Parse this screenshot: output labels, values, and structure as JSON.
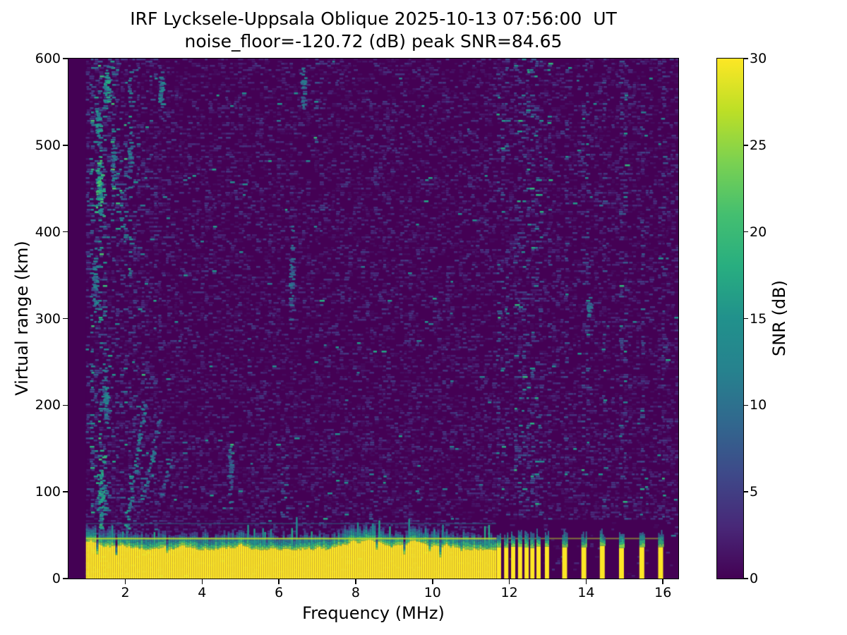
{
  "chart_data": {
    "type": "heatmap",
    "title": "IRF Lycksele-Uppsala Oblique 2025-10-13 07:56:00  UT",
    "subtitle": "noise_floor=-120.72 (dB) peak SNR=84.65",
    "station_pair": "Lycksele-Uppsala",
    "sounding_mode": "Oblique",
    "timestamp_ut": "2025-10-13 07:56:00",
    "noise_floor_db": -120.72,
    "peak_snr_db": 84.65,
    "xlabel": "Frequency (MHz)",
    "ylabel": "Virtual range (km)",
    "colorbar_label": "SNR (dB)",
    "xlim": [
      0.52,
      16.4
    ],
    "ylim": [
      0,
      600
    ],
    "snr_range_db": [
      0,
      30
    ],
    "xticks": [
      2,
      4,
      6,
      8,
      10,
      12,
      14,
      16
    ],
    "yticks": [
      0,
      100,
      200,
      300,
      400,
      500,
      600
    ],
    "colorbar_ticks": [
      0,
      5,
      10,
      15,
      20,
      25,
      30
    ],
    "colormap": "viridis",
    "colormap_stops": [
      "#440154",
      "#482878",
      "#3e4989",
      "#31688e",
      "#26828e",
      "#21918c",
      "#28ae80",
      "#44bf70",
      "#7ad151",
      "#bddf26",
      "#fde725"
    ],
    "grid": false,
    "legend": "colorbar-right",
    "data_freq_start_mhz": 0.97,
    "ground_band": {
      "freq_start_mhz": 0.97,
      "solid_freq_end_mhz": 11.66,
      "yellow_top_km": 42,
      "transition_top_km": 66,
      "bright_line_km": 47,
      "teal_line_km": 64
    },
    "stripe_freqs_mhz": [
      11.73,
      11.92,
      12.1,
      12.28,
      12.45,
      12.6,
      12.76,
      12.98,
      13.44,
      13.94,
      14.42,
      14.92,
      15.45,
      15.94
    ],
    "streak_columns": [
      {
        "f": 1.12,
        "km0": 0,
        "km1": 600,
        "s": 0.5
      },
      {
        "f": 1.3,
        "km0": 60,
        "km1": 600,
        "s": 0.55
      },
      {
        "f": 1.45,
        "km0": 60,
        "km1": 600,
        "s": 0.45
      },
      {
        "f": 1.62,
        "km0": 450,
        "km1": 600,
        "s": 0.7
      },
      {
        "f": 1.8,
        "km0": 400,
        "km1": 545,
        "s": 0.45
      },
      {
        "f": 2.02,
        "km0": 350,
        "km1": 530,
        "s": 0.4
      },
      {
        "f": 2.12,
        "km0": 540,
        "km1": 600,
        "s": 0.5
      },
      {
        "f": 2.35,
        "km0": 120,
        "km1": 320,
        "s": 0.35
      },
      {
        "f": 3.05,
        "km0": 90,
        "km1": 170,
        "s": 0.3
      },
      {
        "f": 4.7,
        "km0": 66,
        "km1": 180,
        "s": 0.45
      },
      {
        "f": 5.15,
        "km0": 200,
        "km1": 300,
        "s": 0.22
      },
      {
        "f": 6.1,
        "km0": 66,
        "km1": 160,
        "s": 0.3
      },
      {
        "f": 6.25,
        "km0": 280,
        "km1": 430,
        "s": 0.28
      },
      {
        "f": 6.95,
        "km0": 500,
        "km1": 600,
        "s": 0.42
      },
      {
        "f": 7.05,
        "km0": 310,
        "km1": 430,
        "s": 0.28
      },
      {
        "f": 8.4,
        "km0": 60,
        "km1": 130,
        "s": 0.28
      },
      {
        "f": 9.55,
        "km0": 60,
        "km1": 150,
        "s": 0.2
      },
      {
        "f": 10.6,
        "km0": 60,
        "km1": 170,
        "s": 0.22
      },
      {
        "f": 15.5,
        "km0": 60,
        "km1": 120,
        "s": 0.25
      }
    ],
    "blobs": [
      {
        "f": 1.3,
        "km": 455,
        "rf": 0.1,
        "rkm": 30,
        "v": 19,
        "n": 70
      },
      {
        "f": 1.27,
        "km": 520,
        "rf": 0.07,
        "rkm": 22,
        "v": 15,
        "n": 40
      },
      {
        "f": 1.5,
        "km": 565,
        "rf": 0.08,
        "rkm": 22,
        "v": 16,
        "n": 45
      },
      {
        "f": 1.18,
        "km": 350,
        "rf": 0.06,
        "rkm": 45,
        "v": 12,
        "n": 45
      },
      {
        "f": 1.45,
        "km": 205,
        "rf": 0.07,
        "rkm": 35,
        "v": 13,
        "n": 45
      },
      {
        "f": 1.35,
        "km": 100,
        "rf": 0.1,
        "rkm": 38,
        "v": 16,
        "n": 60
      },
      {
        "f": 1.65,
        "km": 480,
        "rf": 0.05,
        "rkm": 30,
        "v": 12,
        "n": 30
      },
      {
        "f": 2.1,
        "km": 490,
        "rf": 0.05,
        "rkm": 28,
        "v": 11,
        "n": 30
      },
      {
        "f": 2.9,
        "km": 565,
        "rf": 0.05,
        "rkm": 22,
        "v": 12,
        "n": 30
      },
      {
        "f": 6.6,
        "km": 565,
        "rf": 0.06,
        "rkm": 25,
        "v": 11,
        "n": 35
      },
      {
        "f": 6.3,
        "km": 360,
        "rf": 0.05,
        "rkm": 45,
        "v": 9,
        "n": 35
      },
      {
        "f": 4.7,
        "km": 120,
        "rf": 0.04,
        "rkm": 45,
        "v": 10,
        "n": 30
      },
      {
        "f": 14.05,
        "km": 310,
        "rf": 0.04,
        "rkm": 14,
        "v": 11,
        "n": 18
      }
    ],
    "trace_segments": [
      {
        "f0": 1.97,
        "km0": 52,
        "f1": 2.32,
        "km1": 155,
        "v": 15
      },
      {
        "f0": 2.32,
        "km0": 155,
        "f1": 2.48,
        "km1": 205,
        "v": 12
      },
      {
        "f0": 2.42,
        "km0": 90,
        "f1": 2.72,
        "km1": 148,
        "v": 13
      },
      {
        "f0": 2.72,
        "km0": 148,
        "f1": 2.85,
        "km1": 185,
        "v": 10
      },
      {
        "f0": 2.9,
        "km0": 95,
        "f1": 3.15,
        "km1": 135,
        "v": 9
      }
    ]
  }
}
